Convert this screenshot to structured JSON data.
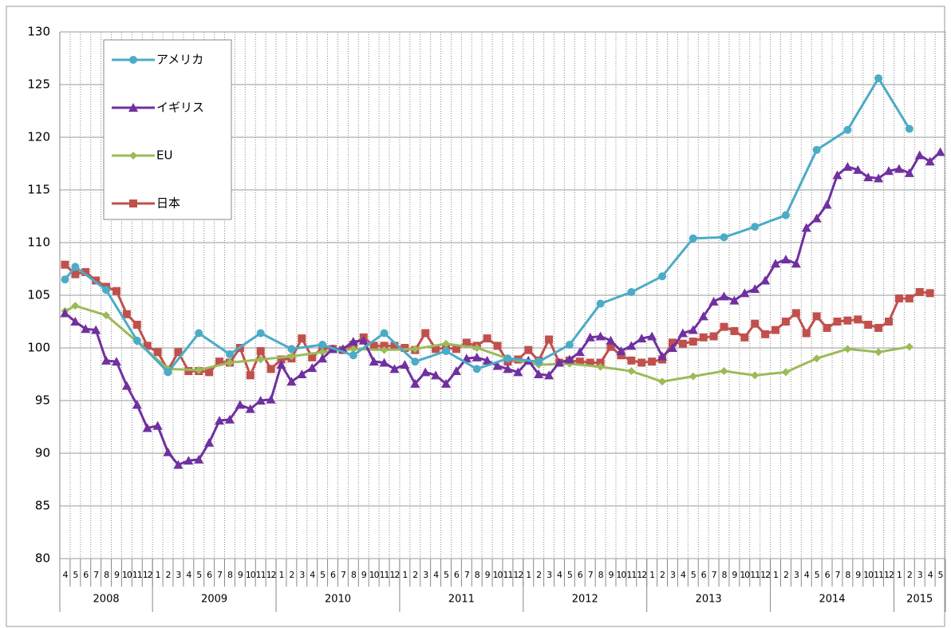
{
  "chart_data": {
    "type": "line",
    "categories": [
      "4",
      "5",
      "6",
      "7",
      "8",
      "9",
      "10",
      "11",
      "12",
      "1",
      "2",
      "3",
      "4",
      "5",
      "6",
      "7",
      "8",
      "9",
      "10",
      "11",
      "12",
      "1",
      "2",
      "3",
      "4",
      "5",
      "6",
      "7",
      "8",
      "9",
      "10",
      "11",
      "12",
      "1",
      "2",
      "3",
      "4",
      "5",
      "6",
      "7",
      "8",
      "9",
      "10",
      "11",
      "12",
      "1",
      "2",
      "3",
      "4",
      "5",
      "6",
      "7",
      "8",
      "9",
      "10",
      "11",
      "12",
      "1",
      "2",
      "3",
      "4",
      "5",
      "6",
      "7",
      "8",
      "9",
      "10",
      "11",
      "12",
      "1",
      "2",
      "3",
      "4",
      "5",
      "6",
      "7",
      "8",
      "9",
      "10",
      "11",
      "12",
      "1",
      "2",
      "3",
      "4",
      "5"
    ],
    "years": [
      "2008",
      "2009",
      "2010",
      "2011",
      "2012",
      "2013",
      "2014",
      "2015"
    ],
    "ylim": [
      80,
      130
    ],
    "yticks": [
      80,
      85,
      90,
      95,
      100,
      105,
      110,
      115,
      120,
      125,
      130
    ],
    "grid": true,
    "connect_nulls": true,
    "legend": "top-left",
    "series": [
      {
        "name": "アメリカ",
        "color": "#4bacc6",
        "marker": "circle",
        "values": [
          106.5,
          107.7,
          null,
          null,
          105.5,
          null,
          null,
          100.7,
          null,
          null,
          97.7,
          null,
          null,
          101.4,
          null,
          null,
          99.4,
          null,
          null,
          101.4,
          null,
          null,
          99.9,
          null,
          null,
          100.3,
          null,
          null,
          99.3,
          null,
          null,
          101.4,
          null,
          null,
          98.7,
          null,
          null,
          99.7,
          null,
          null,
          98.0,
          null,
          null,
          99.0,
          null,
          null,
          98.7,
          null,
          null,
          100.3,
          null,
          null,
          104.2,
          null,
          null,
          105.3,
          null,
          null,
          106.8,
          null,
          null,
          110.4,
          null,
          null,
          110.5,
          null,
          null,
          111.5,
          null,
          null,
          112.6,
          null,
          null,
          118.8,
          null,
          null,
          120.7,
          null,
          null,
          125.6,
          null,
          null,
          120.8,
          null,
          null,
          null
        ]
      },
      {
        "name": "イギリス",
        "color": "#7030a0",
        "marker": "triangle",
        "values": [
          103.3,
          102.5,
          101.8,
          101.7,
          98.8,
          98.7,
          96.4,
          94.6,
          92.4,
          92.6,
          90.1,
          88.9,
          89.3,
          89.4,
          91.0,
          93.1,
          93.2,
          94.6,
          94.2,
          95.0,
          95.1,
          98.4,
          96.8,
          97.5,
          98.1,
          99.0,
          99.9,
          99.9,
          100.6,
          100.7,
          98.7,
          98.6,
          98.0,
          98.4,
          96.6,
          97.7,
          97.4,
          96.6,
          97.8,
          99.0,
          99.1,
          98.8,
          98.3,
          98.0,
          97.7,
          98.8,
          97.5,
          97.4,
          98.6,
          98.9,
          99.6,
          101.0,
          101.1,
          100.7,
          99.7,
          100.2,
          100.9,
          101.1,
          99.2,
          100.0,
          101.4,
          101.7,
          103.0,
          104.4,
          104.9,
          104.5,
          105.2,
          105.6,
          106.4,
          108.0,
          108.4,
          108.0,
          111.4,
          112.3,
          113.6,
          116.4,
          117.2,
          116.9,
          116.2,
          116.1,
          116.8,
          117.0,
          116.6,
          118.3,
          117.7,
          118.6
        ]
      },
      {
        "name": "EU",
        "color": "#9bbb59",
        "marker": "diamond",
        "values": [
          103.5,
          104.0,
          null,
          null,
          103.1,
          null,
          null,
          100.6,
          null,
          null,
          98.0,
          null,
          null,
          97.9,
          null,
          null,
          98.6,
          null,
          null,
          98.9,
          null,
          null,
          99.2,
          null,
          null,
          99.6,
          null,
          null,
          99.9,
          null,
          null,
          99.8,
          null,
          null,
          99.9,
          null,
          null,
          100.4,
          null,
          null,
          100.0,
          null,
          null,
          99.0,
          null,
          null,
          98.4,
          null,
          null,
          98.5,
          null,
          null,
          98.2,
          null,
          null,
          97.8,
          null,
          null,
          96.8,
          null,
          null,
          97.3,
          null,
          null,
          97.8,
          null,
          null,
          97.4,
          null,
          null,
          97.7,
          null,
          null,
          99.0,
          null,
          null,
          99.9,
          null,
          null,
          99.6,
          null,
          null,
          100.1,
          null,
          null,
          null
        ]
      },
      {
        "name": "日本",
        "color": "#c0504d",
        "marker": "square",
        "values": [
          107.9,
          107.0,
          107.2,
          106.4,
          105.8,
          105.4,
          103.2,
          102.2,
          100.2,
          99.6,
          97.9,
          99.6,
          97.8,
          97.8,
          97.7,
          98.7,
          98.6,
          100.0,
          97.4,
          99.7,
          98.0,
          98.9,
          99.0,
          100.9,
          99.1,
          100.0,
          99.9,
          99.8,
          100.3,
          101.0,
          100.2,
          100.2,
          100.2,
          100.0,
          99.8,
          101.4,
          99.9,
          100.0,
          99.9,
          100.5,
          100.2,
          100.9,
          100.2,
          98.7,
          98.9,
          99.8,
          98.8,
          100.8,
          98.6,
          98.8,
          98.7,
          98.6,
          98.6,
          100.1,
          99.3,
          98.8,
          98.6,
          98.7,
          98.9,
          100.5,
          100.4,
          100.6,
          101.0,
          101.1,
          102.0,
          101.6,
          101.0,
          102.3,
          101.3,
          101.7,
          102.5,
          103.3,
          101.4,
          103.0,
          101.9,
          102.5,
          102.6,
          102.7,
          102.2,
          101.9,
          102.5,
          104.7,
          104.7,
          105.3,
          105.2,
          null
        ]
      }
    ]
  }
}
